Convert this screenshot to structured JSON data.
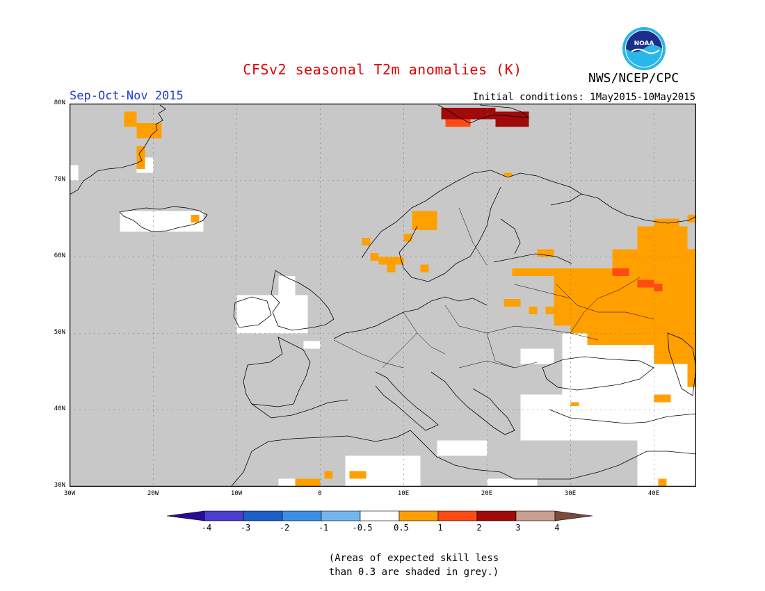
{
  "title": "CFSv2 seasonal T2m anomalies (K)",
  "agency": "NWS/NCEP/CPC",
  "logo_text": "NOAA",
  "season": "Sep-Oct-Nov 2015",
  "initial_conditions": "Initial conditions: 1May2015-10May2015",
  "lat_labels": [
    "80N",
    "70N",
    "60N",
    "50N",
    "40N",
    "30N"
  ],
  "lon_labels": [
    "30W",
    "20W",
    "10W",
    "0",
    "10E",
    "20E",
    "30E",
    "40E"
  ],
  "colorbar": {
    "labels": [
      "-4",
      "-3",
      "-2",
      "-1",
      "-0.5",
      "0.5",
      "1",
      "2",
      "3",
      "4"
    ],
    "colors": [
      "#2a0a9a",
      "#4a3ed0",
      "#1d5fc9",
      "#3b8ee6",
      "#74b6f0",
      "#ffffff",
      "#ffa000",
      "#ff4a14",
      "#a00a0a",
      "#c8a090",
      "#7a4a3a"
    ]
  },
  "colors": {
    "no_skill_grey": "#c8c8c8",
    "near_normal": "#ffffff",
    "warm_0_5_1": "#ffa000",
    "warm_1_2": "#ff4a14",
    "warm_2_3": "#a00a0a"
  },
  "note": [
    "(Areas of expected skill less",
    "than 0.3 are shaded in grey.)"
  ],
  "chart_data": {
    "type": "heatmap",
    "title": "CFSv2 seasonal T2m anomalies (K)",
    "period": "Sep-Oct-Nov 2015",
    "lon_range": [
      -30,
      45
    ],
    "lat_range": [
      30,
      80
    ],
    "color_levels": [
      -4,
      -3,
      -2,
      -1,
      -0.5,
      0.5,
      1,
      2,
      3,
      4
    ],
    "regions": [
      {
        "category": "grey",
        "lon": [
          -30,
          45
        ],
        "lat": [
          30,
          80
        ]
      },
      {
        "category": "white",
        "lon": [
          -30,
          -29
        ],
        "lat": [
          70,
          72
        ]
      },
      {
        "category": "white",
        "lon": [
          -22,
          -20
        ],
        "lat": [
          71,
          73
        ]
      },
      {
        "category": "white",
        "lon": [
          -24,
          -14
        ],
        "lat": [
          63.3,
          66
        ]
      },
      {
        "category": "white",
        "lon": [
          -10,
          -1.5
        ],
        "lat": [
          50,
          55
        ]
      },
      {
        "category": "white",
        "lon": [
          -5,
          -3
        ],
        "lat": [
          55,
          57.5
        ]
      },
      {
        "category": "white",
        "lon": [
          -2,
          0
        ],
        "lat": [
          48,
          49
        ]
      },
      {
        "category": "white",
        "lon": [
          29,
          45
        ],
        "lat": [
          42,
          50
        ]
      },
      {
        "category": "white",
        "lon": [
          24,
          45
        ],
        "lat": [
          36,
          42
        ]
      },
      {
        "category": "white",
        "lon": [
          38,
          45
        ],
        "lat": [
          30,
          36
        ]
      },
      {
        "category": "white",
        "lon": [
          3,
          12
        ],
        "lat": [
          30,
          34
        ]
      },
      {
        "category": "white",
        "lon": [
          14,
          20
        ],
        "lat": [
          34,
          36
        ]
      },
      {
        "category": "white",
        "lon": [
          -5,
          -1
        ],
        "lat": [
          30,
          31
        ]
      },
      {
        "category": "white",
        "lon": [
          20,
          26
        ],
        "lat": [
          30,
          31
        ]
      },
      {
        "category": "white",
        "lon": [
          24,
          28
        ],
        "lat": [
          46,
          48
        ]
      },
      {
        "category": "0.5-1",
        "lon": [
          -23.5,
          -22
        ],
        "lat": [
          77,
          79
        ]
      },
      {
        "category": "0.5-1",
        "lon": [
          -22,
          -19
        ],
        "lat": [
          75.5,
          77.5
        ]
      },
      {
        "category": "0.5-1",
        "lon": [
          -22,
          -21
        ],
        "lat": [
          71.5,
          74.5
        ]
      },
      {
        "category": "0.5-1",
        "lon": [
          -15.5,
          -14.5
        ],
        "lat": [
          64.5,
          65.5
        ]
      },
      {
        "category": "0.5-1",
        "lon": [
          5,
          6
        ],
        "lat": [
          61.5,
          62.5
        ]
      },
      {
        "category": "0.5-1",
        "lon": [
          6,
          7
        ],
        "lat": [
          59.5,
          60.5
        ]
      },
      {
        "category": "0.5-1",
        "lon": [
          7,
          10
        ],
        "lat": [
          59,
          60
        ]
      },
      {
        "category": "0.5-1",
        "lon": [
          8,
          9
        ],
        "lat": [
          58,
          59
        ]
      },
      {
        "category": "0.5-1",
        "lon": [
          10,
          11
        ],
        "lat": [
          62,
          63
        ]
      },
      {
        "category": "0.5-1",
        "lon": [
          11,
          14
        ],
        "lat": [
          63.5,
          66
        ]
      },
      {
        "category": "0.5-1",
        "lon": [
          12,
          13
        ],
        "lat": [
          58,
          59
        ]
      },
      {
        "category": "0.5-1",
        "lon": [
          22,
          23
        ],
        "lat": [
          70.5,
          71
        ]
      },
      {
        "category": "0.5-1",
        "lon": [
          26,
          28
        ],
        "lat": [
          60,
          61
        ]
      },
      {
        "category": "0.5-1",
        "lon": [
          23,
          28
        ],
        "lat": [
          57.5,
          58.5
        ]
      },
      {
        "category": "0.5-1",
        "lon": [
          22,
          24
        ],
        "lat": [
          53.5,
          54.5
        ]
      },
      {
        "category": "0.5-1",
        "lon": [
          25,
          26
        ],
        "lat": [
          52.5,
          53.5
        ]
      },
      {
        "category": "0.5-1",
        "lon": [
          27,
          31
        ],
        "lat": [
          52.5,
          53.5
        ]
      },
      {
        "category": "0.5-1",
        "lon": [
          28,
          45
        ],
        "lat": [
          51,
          58.5
        ]
      },
      {
        "category": "0.5-1",
        "lon": [
          30,
          45
        ],
        "lat": [
          50,
          51
        ]
      },
      {
        "category": "0.5-1",
        "lon": [
          32,
          45
        ],
        "lat": [
          48.5,
          50
        ]
      },
      {
        "category": "0.5-1",
        "lon": [
          40,
          45
        ],
        "lat": [
          46,
          48.5
        ]
      },
      {
        "category": "0.5-1",
        "lon": [
          44,
          45
        ],
        "lat": [
          43,
          46
        ]
      },
      {
        "category": "0.5-1",
        "lon": [
          35,
          45
        ],
        "lat": [
          58.5,
          61
        ]
      },
      {
        "category": "0.5-1",
        "lon": [
          38,
          44
        ],
        "lat": [
          61,
          64
        ]
      },
      {
        "category": "0.5-1",
        "lon": [
          40,
          43
        ],
        "lat": [
          64,
          65
        ]
      },
      {
        "category": "0.5-1",
        "lon": [
          44,
          45
        ],
        "lat": [
          64.5,
          65.5
        ]
      },
      {
        "category": "0.5-1",
        "lon": [
          30,
          31
        ],
        "lat": [
          40.5,
          41
        ]
      },
      {
        "category": "0.5-1",
        "lon": [
          40,
          42
        ],
        "lat": [
          41,
          42
        ]
      },
      {
        "category": "0.5-1",
        "lon": [
          -3,
          0
        ],
        "lat": [
          30,
          31
        ]
      },
      {
        "category": "0.5-1",
        "lon": [
          0.5,
          1.5
        ],
        "lat": [
          31,
          32
        ]
      },
      {
        "category": "0.5-1",
        "lon": [
          3.5,
          5.5
        ],
        "lat": [
          31,
          32
        ]
      },
      {
        "category": "0.5-1",
        "lon": [
          40.5,
          41.5
        ],
        "lat": [
          30,
          31
        ]
      },
      {
        "category": "1-2",
        "lon": [
          35,
          37
        ],
        "lat": [
          57.5,
          58.5
        ]
      },
      {
        "category": "1-2",
        "lon": [
          38,
          40
        ],
        "lat": [
          56,
          57
        ]
      },
      {
        "category": "1-2",
        "lon": [
          40,
          41
        ],
        "lat": [
          55.5,
          56.5
        ]
      },
      {
        "category": "1-2",
        "lon": [
          15,
          18
        ],
        "lat": [
          77,
          78
        ]
      },
      {
        "category": "2-3",
        "lon": [
          14.5,
          21
        ],
        "lat": [
          78,
          79.5
        ]
      },
      {
        "category": "2-3",
        "lon": [
          21,
          25
        ],
        "lat": [
          77,
          79
        ]
      }
    ]
  }
}
